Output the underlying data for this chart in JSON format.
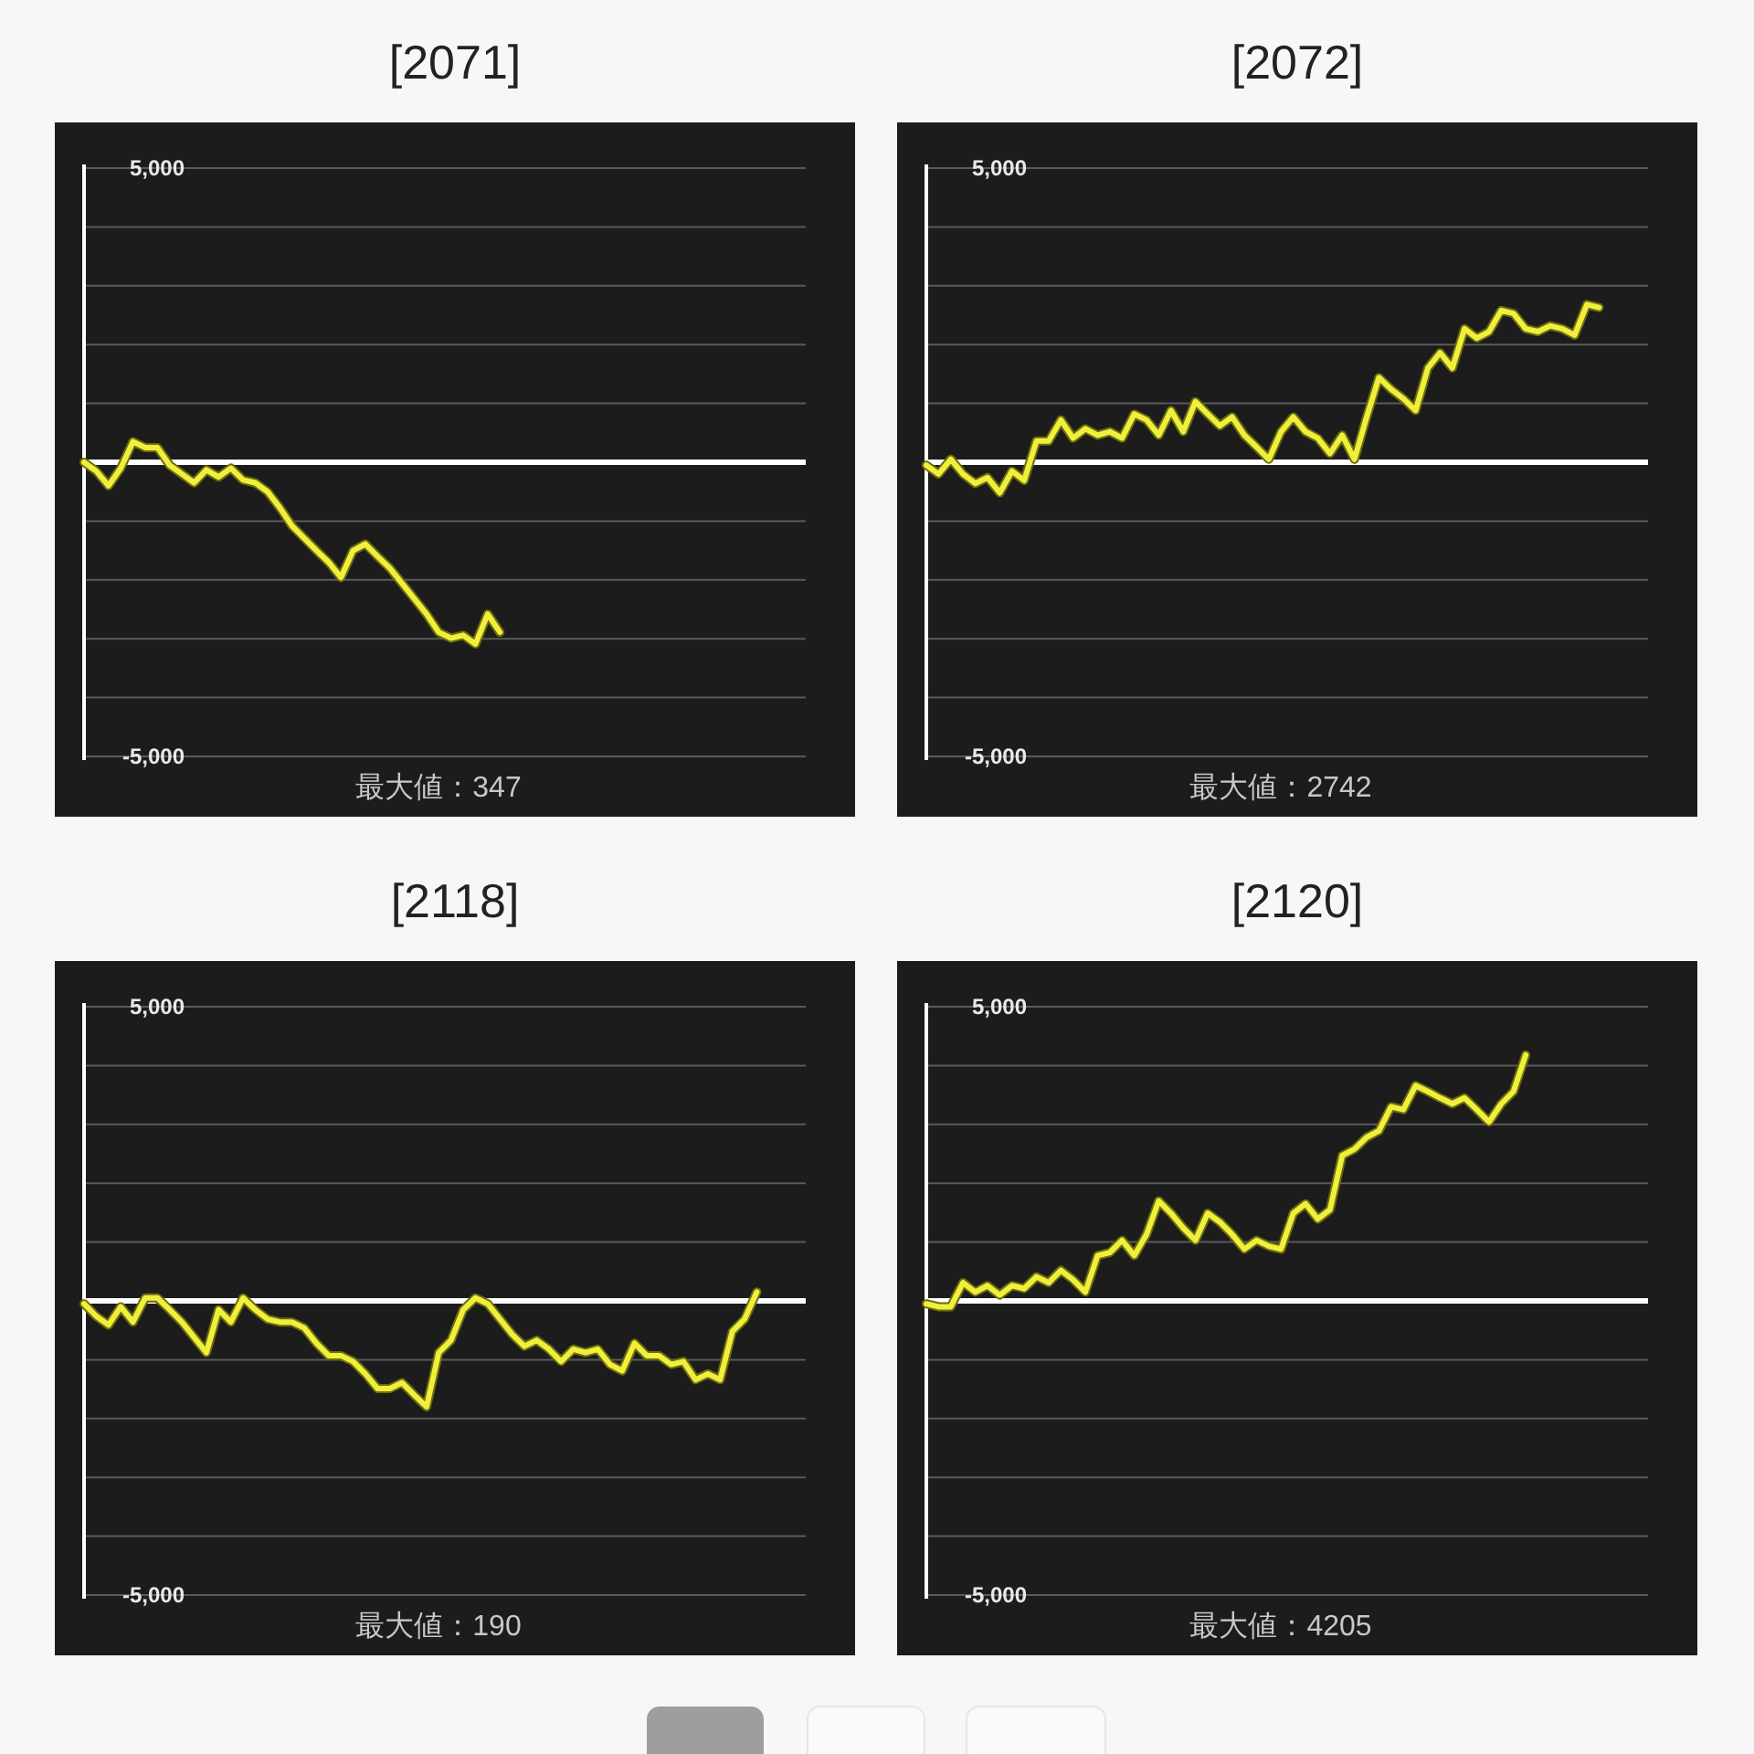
{
  "chart_data": [
    {
      "type": "line",
      "title": "[2071]",
      "categories": [
        null,
        null,
        null,
        null,
        null,
        null,
        null,
        null,
        null,
        null,
        null,
        null,
        null,
        null,
        null,
        null,
        null,
        null,
        null,
        null,
        null,
        null,
        null,
        null,
        null,
        null,
        null,
        null,
        null,
        null,
        null,
        null,
        null,
        null,
        null,
        null,
        null,
        null,
        null,
        null,
        null,
        null,
        null,
        null,
        null,
        null,
        null,
        null,
        null,
        null,
        null,
        null,
        null,
        null,
        null,
        null,
        null,
        null,
        null,
        null
      ],
      "series": [
        {
          "color": "#f0f03c",
          "values": [
            0,
            -150,
            -400,
            -100,
            350,
            250,
            250,
            -50,
            -200,
            -350,
            -130,
            -250,
            -100,
            -300,
            -350,
            -500,
            -770,
            -1080,
            -1290,
            -1500,
            -1700,
            -1960,
            -1500,
            -1390,
            -1600,
            -1800,
            -2060,
            -2320,
            -2580,
            -2890,
            -2990,
            -2940,
            -3090,
            -2580,
            -2890,
            null,
            null,
            null,
            null,
            null,
            null,
            null,
            null,
            null,
            null,
            null,
            null,
            null,
            null,
            null,
            null,
            null,
            null,
            null,
            null,
            null,
            null,
            null,
            null,
            null
          ]
        }
      ],
      "ylim": [
        -5000,
        5000
      ],
      "yticks": [
        {
          "value": 5000,
          "label": "5,000"
        },
        {
          "value": 4000,
          "label": null
        },
        {
          "value": 3000,
          "label": null
        },
        {
          "value": 2000,
          "label": null
        },
        {
          "value": 1000,
          "label": null
        },
        {
          "value": 0,
          "label": null
        },
        {
          "value": -1000,
          "label": null
        },
        {
          "value": -2000,
          "label": null
        },
        {
          "value": -3000,
          "label": null
        },
        {
          "value": -4000,
          "label": null
        },
        {
          "value": -5000,
          "label": "-5,000"
        }
      ],
      "grid": "y",
      "tick_labels": "y",
      "ref_lines": [
        {
          "axis": "y",
          "value": 0,
          "color": "#ffffff"
        }
      ],
      "annotations": [
        "最大値：347"
      ]
    },
    {
      "type": "line",
      "title": "[2072]",
      "categories": [
        null,
        null,
        null,
        null,
        null,
        null,
        null,
        null,
        null,
        null,
        null,
        null,
        null,
        null,
        null,
        null,
        null,
        null,
        null,
        null,
        null,
        null,
        null,
        null,
        null,
        null,
        null,
        null,
        null,
        null,
        null,
        null,
        null,
        null,
        null,
        null,
        null,
        null,
        null,
        null,
        null,
        null,
        null,
        null,
        null,
        null,
        null,
        null,
        null,
        null,
        null,
        null,
        null,
        null,
        null,
        null,
        null,
        null,
        null,
        null
      ],
      "series": [
        {
          "color": "#f0f03c",
          "values": [
            -50,
            -200,
            50,
            -200,
            -360,
            -260,
            -520,
            -150,
            -310,
            360,
            360,
            720,
            410,
            570,
            460,
            520,
            410,
            820,
            720,
            460,
            880,
            520,
            1030,
            820,
            620,
            770,
            460,
            260,
            50,
            520,
            770,
            520,
            410,
            150,
            460,
            50,
            770,
            1440,
            1240,
            1080,
            880,
            1600,
            1860,
            1600,
            2270,
            2110,
            2220,
            2580,
            2530,
            2270,
            2220,
            2320,
            2270,
            2160,
            2680,
            2630,
            null,
            null,
            null,
            null
          ]
        }
      ],
      "ylim": [
        -5000,
        5000
      ],
      "yticks": [
        {
          "value": 5000,
          "label": "5,000"
        },
        {
          "value": 4000,
          "label": null
        },
        {
          "value": 3000,
          "label": null
        },
        {
          "value": 2000,
          "label": null
        },
        {
          "value": 1000,
          "label": null
        },
        {
          "value": 0,
          "label": null
        },
        {
          "value": -1000,
          "label": null
        },
        {
          "value": -2000,
          "label": null
        },
        {
          "value": -3000,
          "label": null
        },
        {
          "value": -4000,
          "label": null
        },
        {
          "value": -5000,
          "label": "-5,000"
        }
      ],
      "grid": "y",
      "tick_labels": "y",
      "ref_lines": [
        {
          "axis": "y",
          "value": 0,
          "color": "#ffffff"
        }
      ],
      "annotations": [
        "最大値：2742"
      ]
    },
    {
      "type": "line",
      "title": "[2118]",
      "categories": [
        null,
        null,
        null,
        null,
        null,
        null,
        null,
        null,
        null,
        null,
        null,
        null,
        null,
        null,
        null,
        null,
        null,
        null,
        null,
        null,
        null,
        null,
        null,
        null,
        null,
        null,
        null,
        null,
        null,
        null,
        null,
        null,
        null,
        null,
        null,
        null,
        null,
        null,
        null,
        null,
        null,
        null,
        null,
        null,
        null,
        null,
        null,
        null,
        null,
        null,
        null,
        null,
        null,
        null,
        null,
        null,
        null,
        null,
        null,
        null
      ],
      "series": [
        {
          "color": "#f0f03c",
          "values": [
            -50,
            -260,
            -410,
            -100,
            -360,
            50,
            50,
            -150,
            -360,
            -620,
            -880,
            -150,
            -360,
            50,
            -150,
            -310,
            -360,
            -360,
            -460,
            -720,
            -930,
            -930,
            -1030,
            -1240,
            -1490,
            -1490,
            -1390,
            -1600,
            -1800,
            -880,
            -670,
            -150,
            50,
            -50,
            -310,
            -570,
            -770,
            -670,
            -820,
            -1030,
            -820,
            -880,
            -820,
            -1080,
            -1190,
            -720,
            -930,
            -930,
            -1080,
            -1030,
            -1340,
            -1240,
            -1340,
            -520,
            -310,
            150,
            null,
            null,
            null,
            null
          ]
        }
      ],
      "ylim": [
        -5000,
        5000
      ],
      "yticks": [
        {
          "value": 5000,
          "label": "5,000"
        },
        {
          "value": 4000,
          "label": null
        },
        {
          "value": 3000,
          "label": null
        },
        {
          "value": 2000,
          "label": null
        },
        {
          "value": 1000,
          "label": null
        },
        {
          "value": 0,
          "label": null
        },
        {
          "value": -1000,
          "label": null
        },
        {
          "value": -2000,
          "label": null
        },
        {
          "value": -3000,
          "label": null
        },
        {
          "value": -4000,
          "label": null
        },
        {
          "value": -5000,
          "label": "-5,000"
        }
      ],
      "grid": "y",
      "tick_labels": "y",
      "ref_lines": [
        {
          "axis": "y",
          "value": 0,
          "color": "#ffffff"
        }
      ],
      "annotations": [
        "最大値：190"
      ]
    },
    {
      "type": "line",
      "title": "[2120]",
      "categories": [
        null,
        null,
        null,
        null,
        null,
        null,
        null,
        null,
        null,
        null,
        null,
        null,
        null,
        null,
        null,
        null,
        null,
        null,
        null,
        null,
        null,
        null,
        null,
        null,
        null,
        null,
        null,
        null,
        null,
        null,
        null,
        null,
        null,
        null,
        null,
        null,
        null,
        null,
        null,
        null,
        null,
        null,
        null,
        null,
        null,
        null,
        null,
        null,
        null,
        null,
        null,
        null,
        null,
        null,
        null,
        null,
        null,
        null,
        null,
        null
      ],
      "series": [
        {
          "color": "#f0f03c",
          "values": [
            -50,
            -100,
            -100,
            310,
            150,
            260,
            100,
            260,
            210,
            410,
            310,
            520,
            360,
            150,
            770,
            820,
            1030,
            770,
            1130,
            1700,
            1490,
            1240,
            1030,
            1490,
            1340,
            1130,
            880,
            1030,
            930,
            880,
            1490,
            1650,
            1390,
            1550,
            2470,
            2580,
            2780,
            2890,
            3300,
            3250,
            3660,
            3560,
            3450,
            3350,
            3450,
            3250,
            3040,
            3350,
            3560,
            4180,
            null,
            null,
            null,
            null,
            null,
            null,
            null,
            null,
            null,
            null
          ]
        }
      ],
      "ylim": [
        -5000,
        5000
      ],
      "yticks": [
        {
          "value": 5000,
          "label": "5,000"
        },
        {
          "value": 4000,
          "label": null
        },
        {
          "value": 3000,
          "label": null
        },
        {
          "value": 2000,
          "label": null
        },
        {
          "value": 1000,
          "label": null
        },
        {
          "value": 0,
          "label": null
        },
        {
          "value": -1000,
          "label": null
        },
        {
          "value": -2000,
          "label": null
        },
        {
          "value": -3000,
          "label": null
        },
        {
          "value": -4000,
          "label": null
        },
        {
          "value": -5000,
          "label": "-5,000"
        }
      ],
      "grid": "y",
      "tick_labels": "y",
      "ref_lines": [
        {
          "axis": "y",
          "value": 0,
          "color": "#ffffff"
        }
      ],
      "annotations": [
        "最大値：4205"
      ]
    }
  ]
}
